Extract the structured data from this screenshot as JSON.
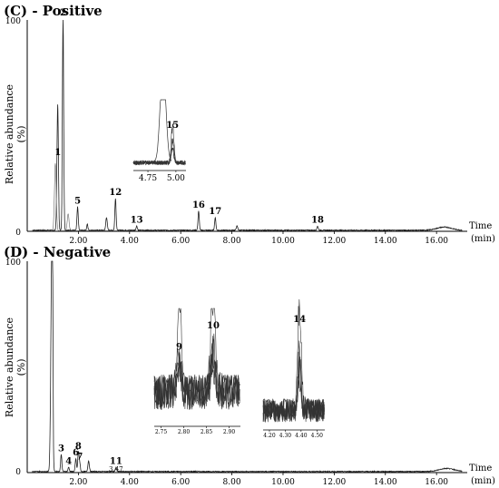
{
  "chart_data": [
    {
      "type": "line",
      "title": "(C) - Positive",
      "ylabel": "Relative abundance (%)",
      "xlabel": "Time (min)",
      "xlabel_parts": [
        "Time",
        "(min)"
      ],
      "xlim": [
        0,
        17.2
      ],
      "ylim": [
        0,
        100
      ],
      "x_ticks": [
        "2.00",
        "4.00",
        "6.00",
        "8.00",
        "10.00",
        "12.00",
        "14.00",
        "16.00"
      ],
      "x_tick_values": [
        2,
        4,
        6,
        8,
        10,
        12,
        14,
        16
      ],
      "y_ticks": [
        "0",
        "100"
      ],
      "y_tick_values": [
        0,
        100
      ],
      "peaks": [
        {
          "label": "1",
          "x": 1.2,
          "y": 34
        },
        {
          "label": "2",
          "x": 1.4,
          "y": 100
        },
        {
          "label": "5",
          "x": 1.97,
          "y": 11
        },
        {
          "label": "12",
          "x": 3.45,
          "y": 15
        },
        {
          "label": "13",
          "x": 4.28,
          "y": 2
        },
        {
          "label": "16",
          "x": 6.7,
          "y": 9
        },
        {
          "label": "17",
          "x": 7.35,
          "y": 6
        },
        {
          "label": "18",
          "x": 11.35,
          "y": 2
        }
      ],
      "inset": {
        "x_ticks": [
          "4.75",
          "5.00"
        ],
        "x_tick_values": [
          4.75,
          5.0
        ],
        "xlim": [
          4.62,
          5.09
        ],
        "peaks": [
          {
            "label": "15",
            "x": 4.97,
            "y": 55
          }
        ]
      }
    },
    {
      "type": "line",
      "title": "(D) - Negative",
      "ylabel": "Relative abundance (%)",
      "xlabel": "Time (min)",
      "xlabel_parts": [
        "Time",
        "(min)"
      ],
      "xlim": [
        0,
        17.2
      ],
      "ylim": [
        0,
        100
      ],
      "x_ticks": [
        "2.00",
        "4.00",
        "6.00",
        "8.00",
        "10.00",
        "12.00",
        "14.00",
        "16.00"
      ],
      "x_tick_values": [
        2,
        4,
        6,
        8,
        10,
        12,
        14,
        16
      ],
      "y_ticks": [
        "0",
        "100"
      ],
      "y_tick_values": [
        0,
        100
      ],
      "peaks": [
        {
          "label": "3",
          "x": 1.33,
          "y": 8
        },
        {
          "label": "4",
          "x": 1.62,
          "y": 2
        },
        {
          "label": "6",
          "x": 1.9,
          "y": 6
        },
        {
          "label": "7",
          "x": 2.05,
          "y": 4
        },
        {
          "label": "8",
          "x": 2.0,
          "y": 9
        },
        {
          "label": "11",
          "x": 3.47,
          "y": 2,
          "note": "3.47"
        }
      ],
      "insets": [
        {
          "x_ticks": [
            "2.75",
            "2.80",
            "2.85",
            "2.90"
          ],
          "x_tick_values": [
            2.75,
            2.8,
            2.85,
            2.9
          ],
          "xlim": [
            2.735,
            2.925
          ],
          "peaks": [
            {
              "label": "9",
              "x": 2.79,
              "y": 62
            },
            {
              "label": "10",
              "x": 2.865,
              "y": 80
            }
          ]
        },
        {
          "x_ticks": [
            "4.20",
            "4.30",
            "4.40",
            "4.50"
          ],
          "x_tick_values": [
            4.2,
            4.3,
            4.4,
            4.5
          ],
          "xlim": [
            4.16,
            4.55
          ],
          "peaks": [
            {
              "label": "14",
              "x": 4.39,
              "y": 80
            }
          ]
        }
      ]
    }
  ]
}
